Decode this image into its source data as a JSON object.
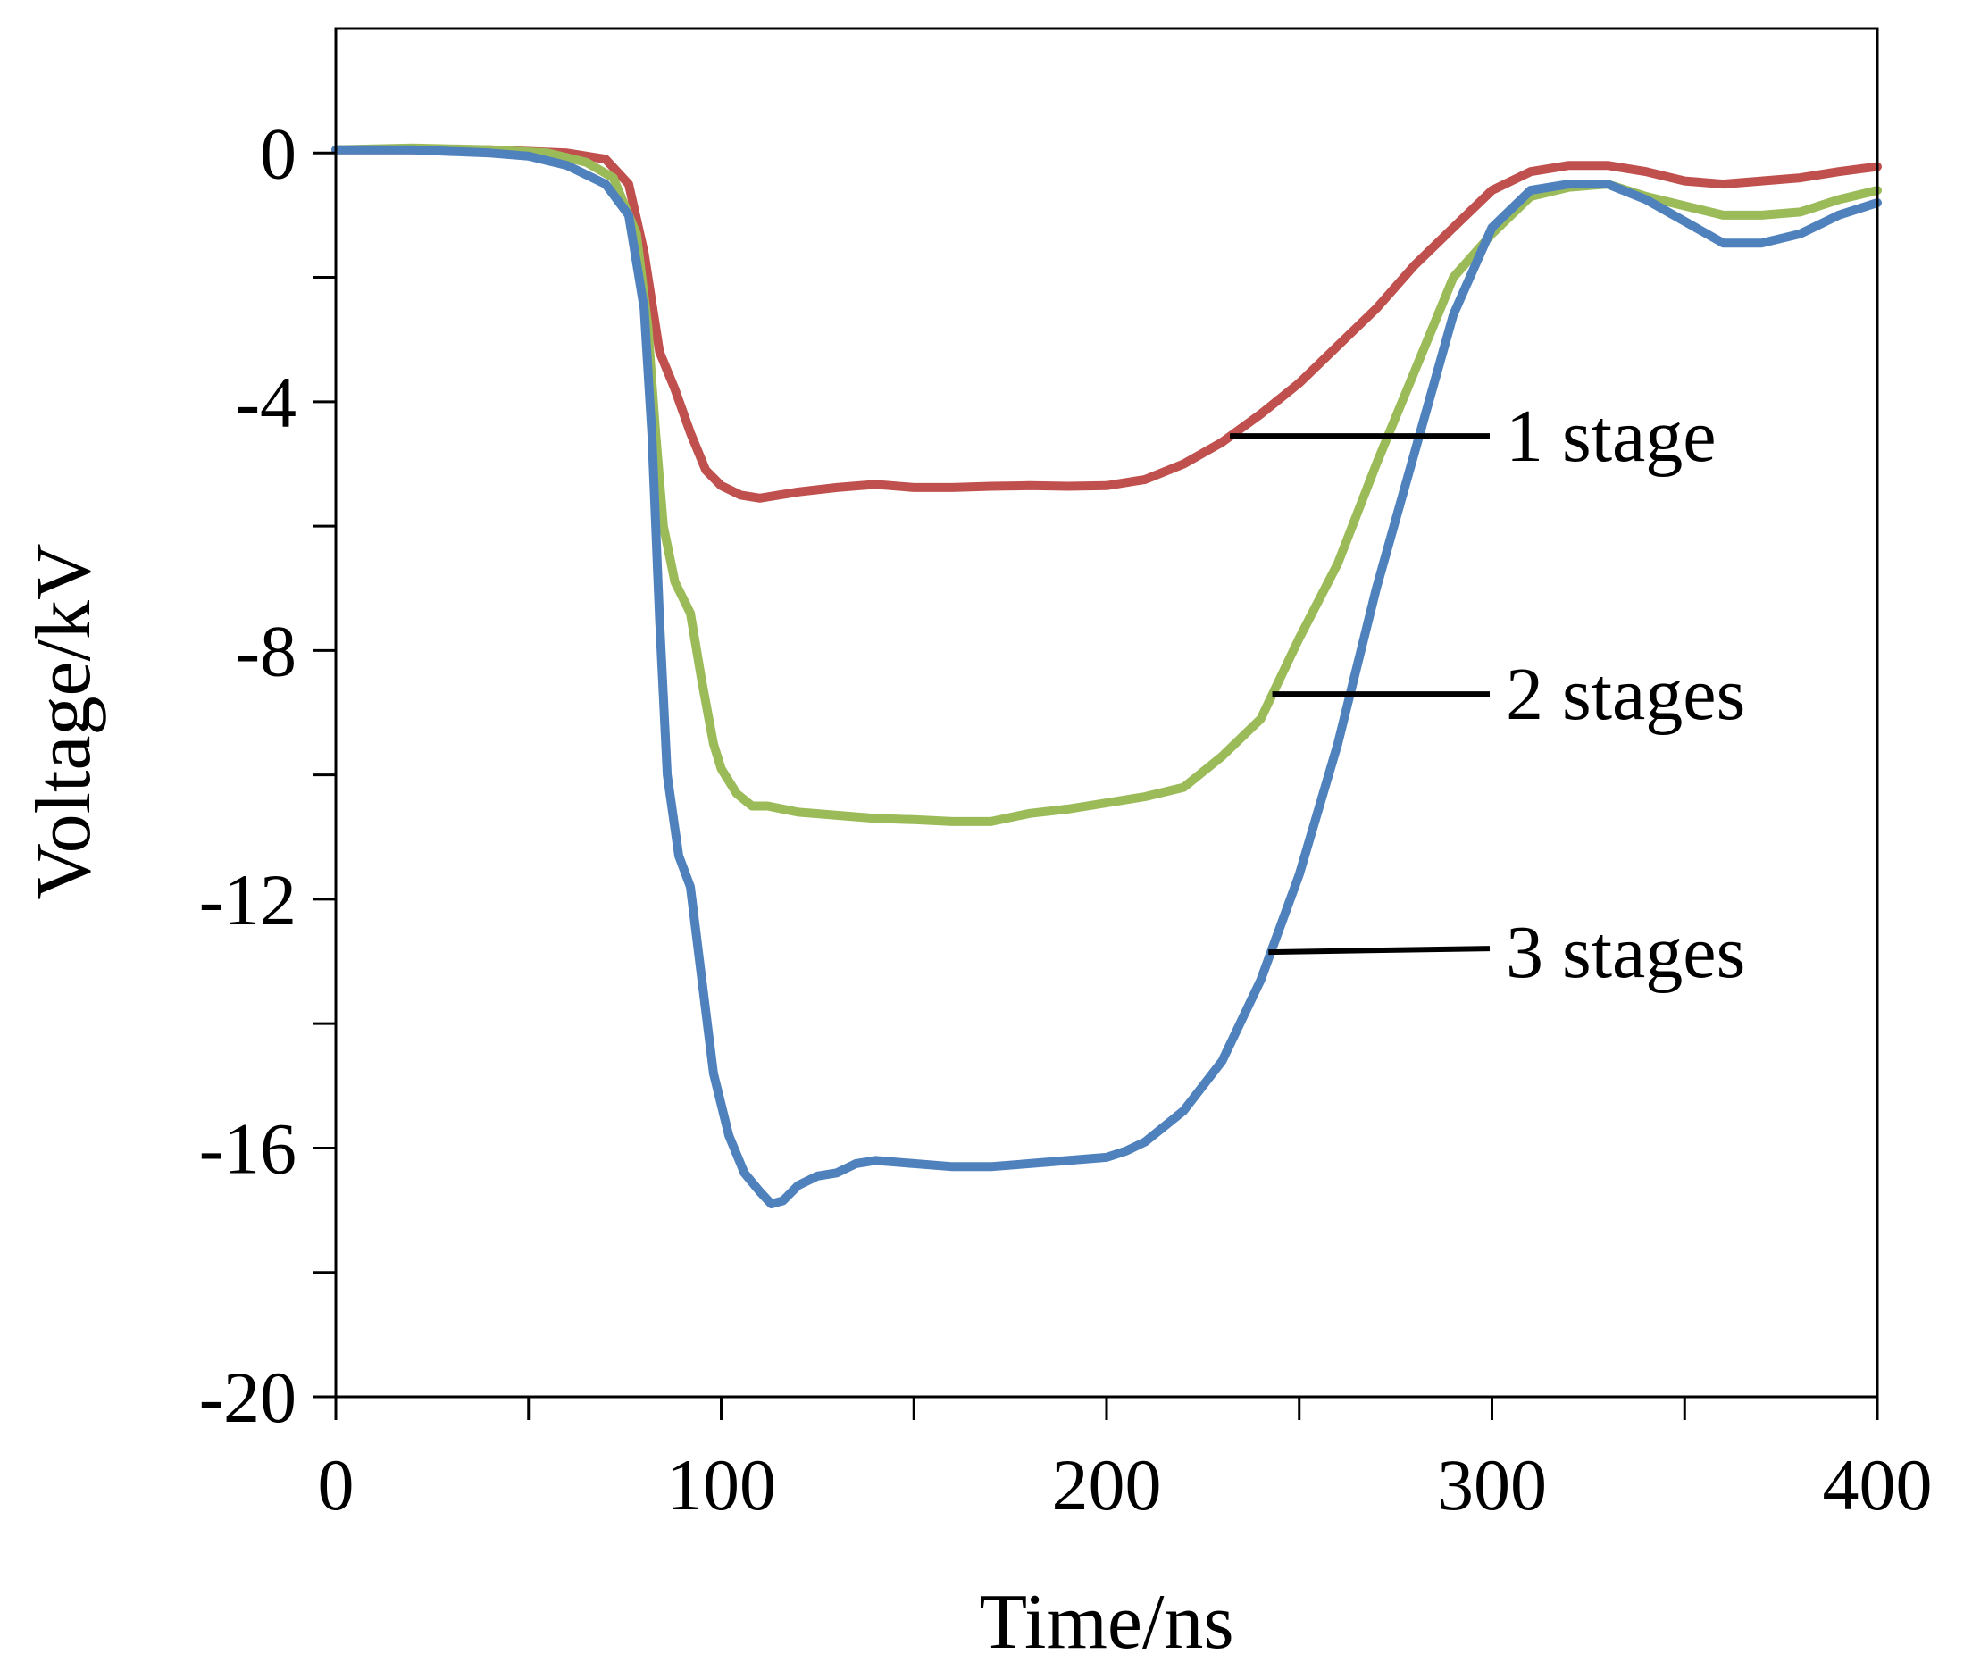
{
  "chart_data": {
    "type": "line",
    "title": "",
    "xlabel": "Time/ns",
    "ylabel": "Voltage/kV",
    "xlim": [
      0,
      400
    ],
    "ylim": [
      -20,
      2
    ],
    "xticks": [
      0,
      100,
      200,
      300,
      400
    ],
    "yticks": [
      0,
      -4,
      -8,
      -12,
      -16,
      -20
    ],
    "x_minor_step": 50,
    "y_minor_step": 2,
    "grid": false,
    "series": [
      {
        "name": "1 stage",
        "color": "#c0504d",
        "label_anchor": [
          232,
          -4.55
        ],
        "points": [
          [
            0,
            0.05
          ],
          [
            20,
            0.05
          ],
          [
            40,
            0.05
          ],
          [
            60,
            0.0
          ],
          [
            70,
            -0.1
          ],
          [
            76,
            -0.5
          ],
          [
            80,
            -1.6
          ],
          [
            84,
            -3.2
          ],
          [
            88,
            -3.8
          ],
          [
            92,
            -4.5
          ],
          [
            96,
            -5.1
          ],
          [
            100,
            -5.35
          ],
          [
            105,
            -5.5
          ],
          [
            110,
            -5.55
          ],
          [
            115,
            -5.5
          ],
          [
            120,
            -5.45
          ],
          [
            130,
            -5.38
          ],
          [
            140,
            -5.33
          ],
          [
            150,
            -5.38
          ],
          [
            160,
            -5.38
          ],
          [
            170,
            -5.36
          ],
          [
            180,
            -5.35
          ],
          [
            190,
            -5.36
          ],
          [
            200,
            -5.35
          ],
          [
            210,
            -5.25
          ],
          [
            220,
            -5.0
          ],
          [
            230,
            -4.65
          ],
          [
            240,
            -4.2
          ],
          [
            250,
            -3.7
          ],
          [
            260,
            -3.1
          ],
          [
            270,
            -2.5
          ],
          [
            280,
            -1.8
          ],
          [
            290,
            -1.2
          ],
          [
            300,
            -0.6
          ],
          [
            310,
            -0.3
          ],
          [
            320,
            -0.2
          ],
          [
            330,
            -0.2
          ],
          [
            340,
            -0.3
          ],
          [
            350,
            -0.45
          ],
          [
            360,
            -0.5
          ],
          [
            370,
            -0.45
          ],
          [
            380,
            -0.4
          ],
          [
            390,
            -0.3
          ],
          [
            400,
            -0.22
          ]
        ]
      },
      {
        "name": "2 stages",
        "color": "#9bbb59",
        "label_anchor": [
          243,
          -8.7
        ],
        "points": [
          [
            0,
            0.05
          ],
          [
            20,
            0.08
          ],
          [
            40,
            0.05
          ],
          [
            55,
            0.0
          ],
          [
            65,
            -0.15
          ],
          [
            72,
            -0.4
          ],
          [
            78,
            -1.3
          ],
          [
            81,
            -2.8
          ],
          [
            83,
            -4.5
          ],
          [
            85,
            -6.0
          ],
          [
            88,
            -6.9
          ],
          [
            92,
            -7.4
          ],
          [
            95,
            -8.5
          ],
          [
            98,
            -9.5
          ],
          [
            100,
            -9.9
          ],
          [
            104,
            -10.3
          ],
          [
            108,
            -10.5
          ],
          [
            112,
            -10.5
          ],
          [
            120,
            -10.6
          ],
          [
            130,
            -10.65
          ],
          [
            140,
            -10.7
          ],
          [
            150,
            -10.72
          ],
          [
            160,
            -10.75
          ],
          [
            170,
            -10.75
          ],
          [
            180,
            -10.62
          ],
          [
            190,
            -10.55
          ],
          [
            200,
            -10.45
          ],
          [
            210,
            -10.35
          ],
          [
            220,
            -10.2
          ],
          [
            230,
            -9.7
          ],
          [
            240,
            -9.1
          ],
          [
            250,
            -7.8
          ],
          [
            260,
            -6.6
          ],
          [
            270,
            -5.0
          ],
          [
            280,
            -3.5
          ],
          [
            290,
            -2.0
          ],
          [
            300,
            -1.3
          ],
          [
            310,
            -0.7
          ],
          [
            320,
            -0.55
          ],
          [
            330,
            -0.5
          ],
          [
            340,
            -0.7
          ],
          [
            350,
            -0.85
          ],
          [
            360,
            -1.0
          ],
          [
            370,
            -1.0
          ],
          [
            380,
            -0.95
          ],
          [
            390,
            -0.75
          ],
          [
            400,
            -0.6
          ]
        ]
      },
      {
        "name": "3 stages",
        "color": "#4f81bd",
        "label_anchor": [
          242,
          -12.85
        ],
        "points": [
          [
            0,
            0.05
          ],
          [
            20,
            0.05
          ],
          [
            40,
            0.0
          ],
          [
            50,
            -0.05
          ],
          [
            60,
            -0.2
          ],
          [
            70,
            -0.5
          ],
          [
            76,
            -1.0
          ],
          [
            80,
            -2.5
          ],
          [
            82,
            -4.5
          ],
          [
            84,
            -7.5
          ],
          [
            86,
            -10.0
          ],
          [
            89,
            -11.3
          ],
          [
            92,
            -11.8
          ],
          [
            95,
            -13.3
          ],
          [
            98,
            -14.8
          ],
          [
            102,
            -15.8
          ],
          [
            106,
            -16.4
          ],
          [
            110,
            -16.7
          ],
          [
            113,
            -16.9
          ],
          [
            116,
            -16.85
          ],
          [
            120,
            -16.6
          ],
          [
            125,
            -16.45
          ],
          [
            130,
            -16.4
          ],
          [
            135,
            -16.25
          ],
          [
            140,
            -16.2
          ],
          [
            150,
            -16.25
          ],
          [
            160,
            -16.3
          ],
          [
            170,
            -16.3
          ],
          [
            180,
            -16.25
          ],
          [
            190,
            -16.2
          ],
          [
            200,
            -16.15
          ],
          [
            205,
            -16.05
          ],
          [
            210,
            -15.9
          ],
          [
            220,
            -15.4
          ],
          [
            230,
            -14.6
          ],
          [
            240,
            -13.3
          ],
          [
            250,
            -11.6
          ],
          [
            260,
            -9.5
          ],
          [
            270,
            -7.0
          ],
          [
            280,
            -4.8
          ],
          [
            290,
            -2.6
          ],
          [
            300,
            -1.2
          ],
          [
            310,
            -0.6
          ],
          [
            320,
            -0.5
          ],
          [
            330,
            -0.5
          ],
          [
            340,
            -0.75
          ],
          [
            350,
            -1.1
          ],
          [
            360,
            -1.45
          ],
          [
            370,
            -1.45
          ],
          [
            380,
            -1.3
          ],
          [
            390,
            -1.0
          ],
          [
            400,
            -0.8
          ]
        ]
      }
    ]
  }
}
